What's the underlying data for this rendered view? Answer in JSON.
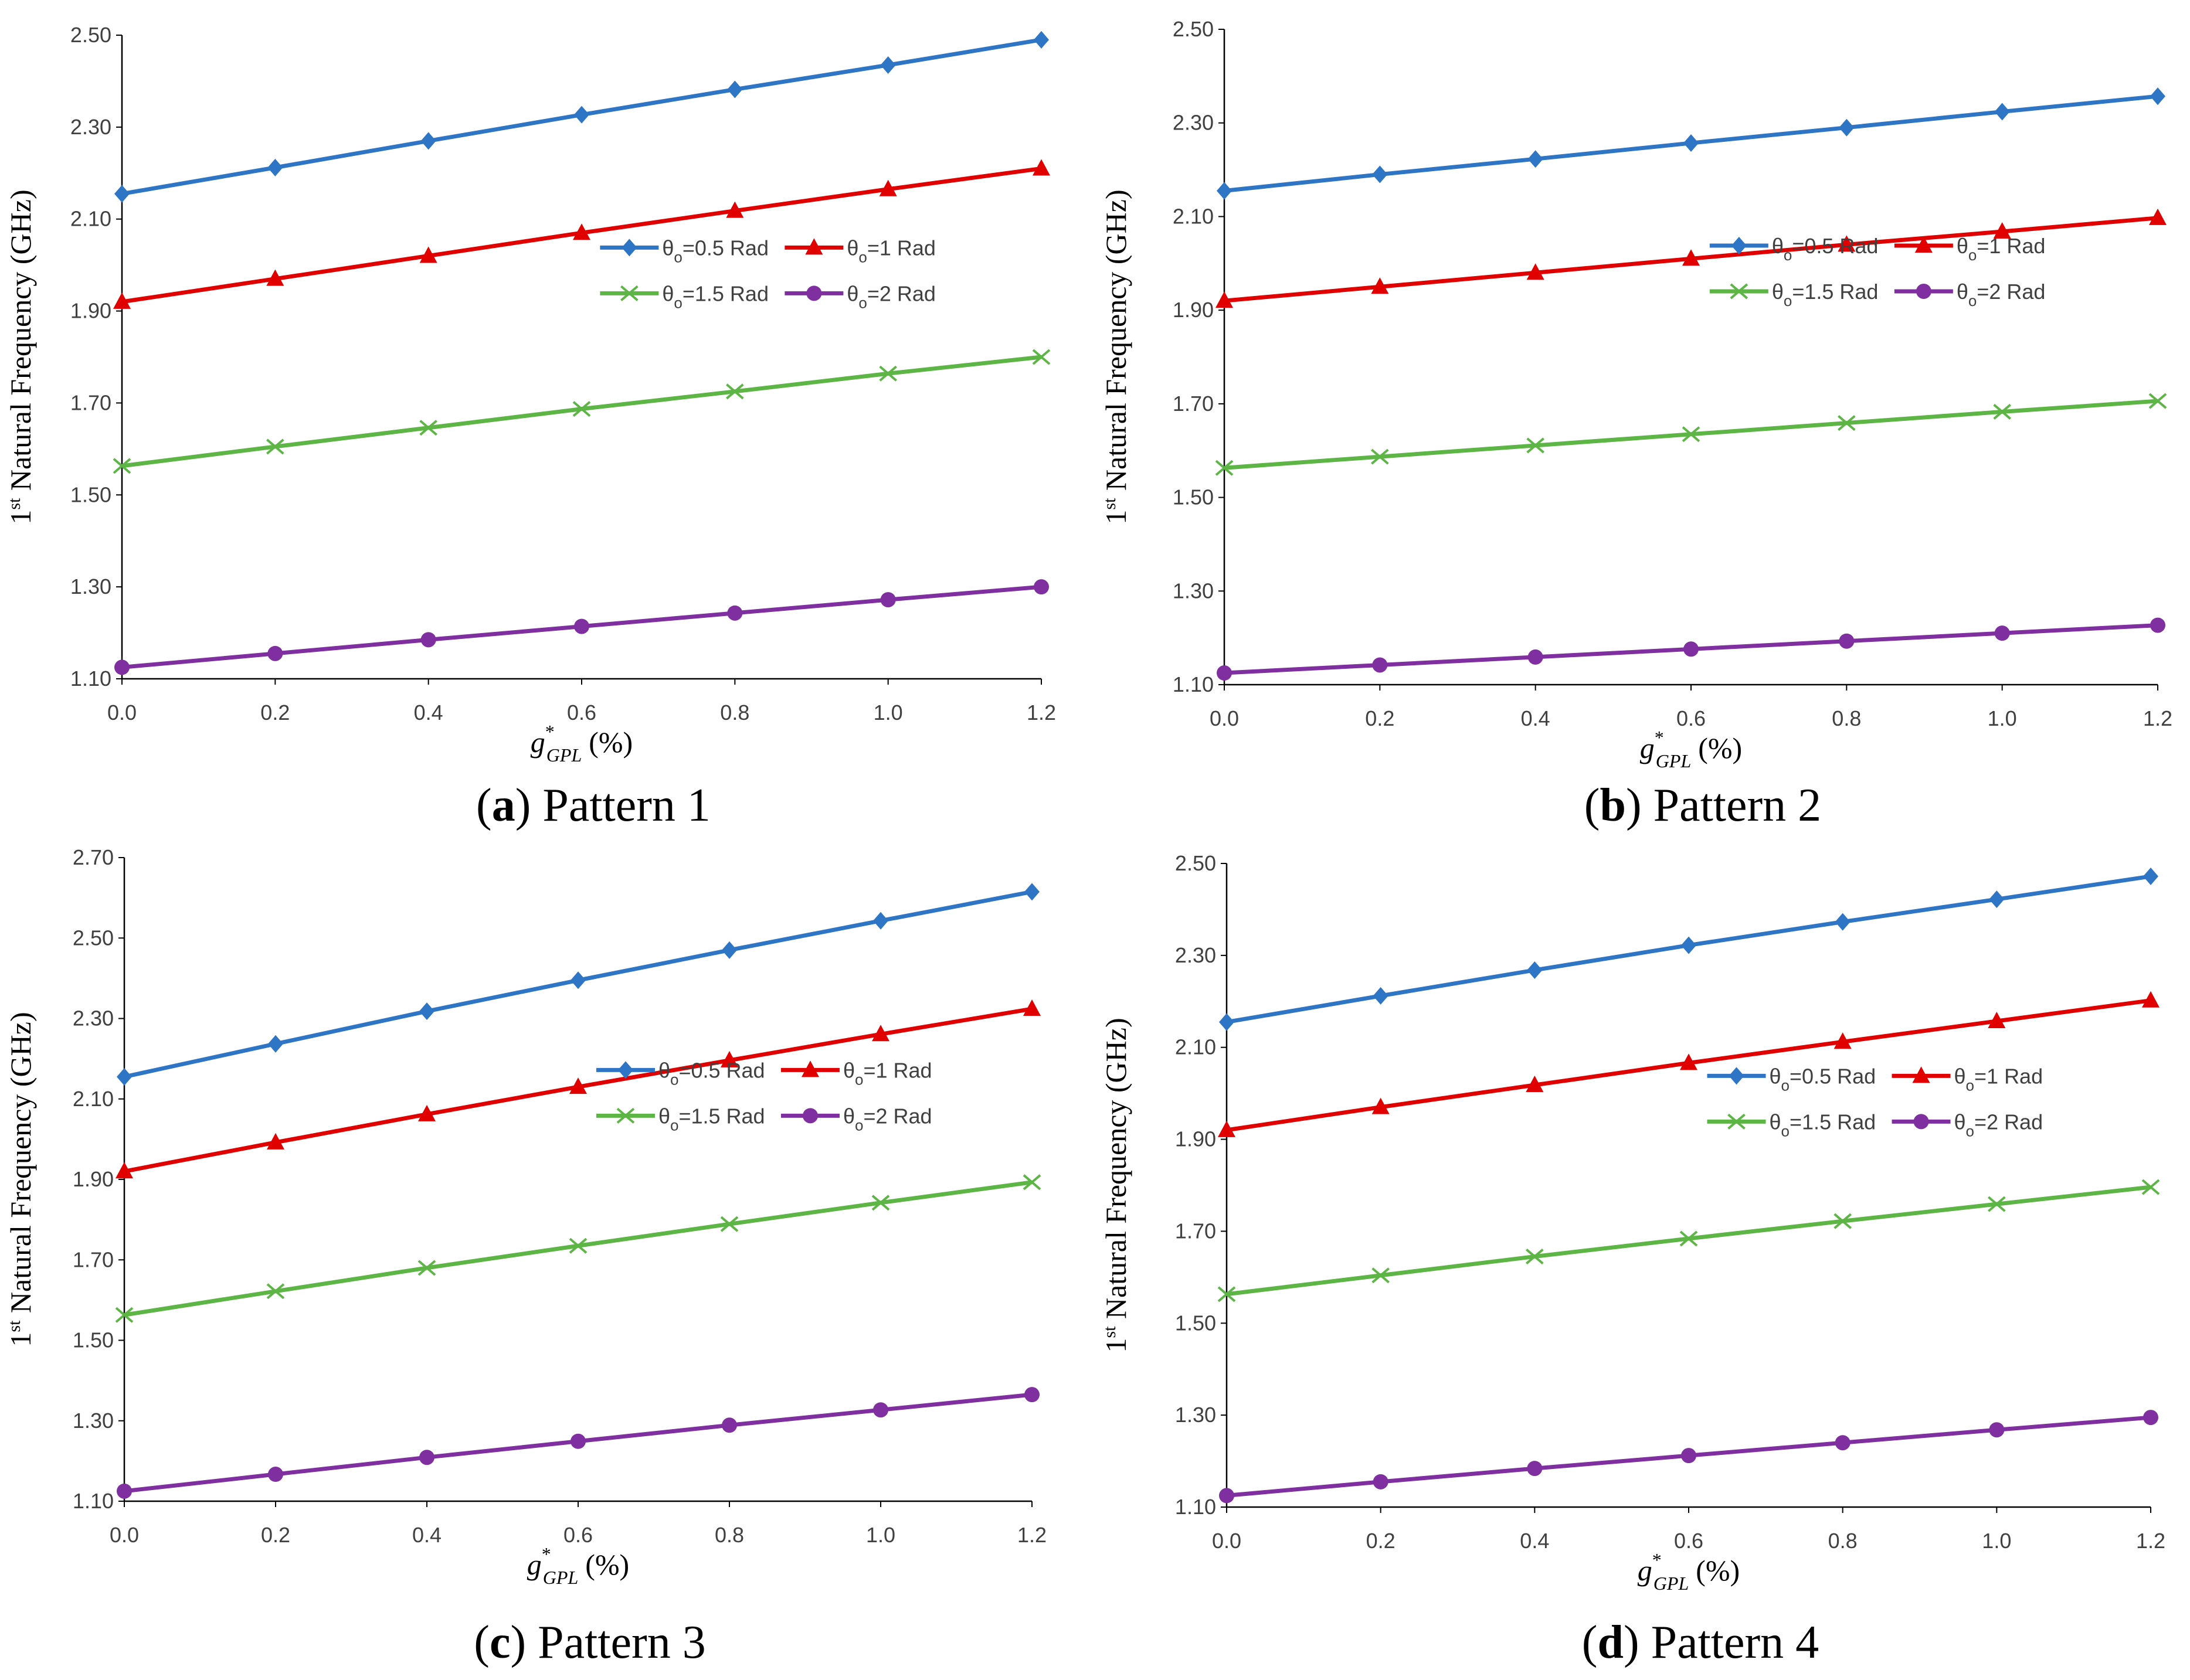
{
  "y_axis_label": "Natural Frequency (GHz)",
  "y_axis_label_prefix": "1",
  "y_axis_label_sup": "st",
  "x_axis_label_var": "g",
  "x_axis_label_sub": "GPL",
  "x_axis_label_sup": "*",
  "x_axis_label_unit": "(%)",
  "legend_theta": "θ",
  "legend_sub": "o",
  "colors": {
    "s1": "#2E75C6",
    "s2": "#E00000",
    "s3": "#5DB546",
    "s4": "#7F2FA0"
  },
  "chart_data": [
    {
      "type": "line",
      "caption_letter": "a",
      "caption_text": "Pattern 1",
      "x": [
        0.0,
        0.2,
        0.4,
        0.6,
        0.8,
        1.0,
        1.2
      ],
      "x_ticks": [
        "0.0",
        "0.2",
        "0.4",
        "0.6",
        "0.8",
        "1.0",
        "1.2"
      ],
      "ylim": [
        1.1,
        2.5
      ],
      "y_ticks": [
        "1.10",
        "1.30",
        "1.50",
        "1.70",
        "1.90",
        "2.10",
        "2.30",
        "2.50"
      ],
      "series": [
        {
          "name": "=0.5 Rad",
          "marker": "diamond",
          "values": [
            2.155,
            2.212,
            2.27,
            2.327,
            2.382,
            2.435,
            2.49
          ]
        },
        {
          "name": "=1 Rad",
          "marker": "triangle",
          "values": [
            1.92,
            1.97,
            2.02,
            2.07,
            2.118,
            2.165,
            2.21
          ]
        },
        {
          "name": "=1.5 Rad",
          "marker": "x",
          "values": [
            1.563,
            1.605,
            1.646,
            1.687,
            1.725,
            1.764,
            1.8
          ]
        },
        {
          "name": "=2 Rad",
          "marker": "circle",
          "values": [
            1.125,
            1.155,
            1.185,
            1.214,
            1.243,
            1.272,
            1.3
          ]
        }
      ]
    },
    {
      "type": "line",
      "caption_letter": "b",
      "caption_text": "Pattern 2",
      "x": [
        0.0,
        0.2,
        0.4,
        0.6,
        0.8,
        1.0,
        1.2
      ],
      "x_ticks": [
        "0.0",
        "0.2",
        "0.4",
        "0.6",
        "0.8",
        "1.0",
        "1.2"
      ],
      "ylim": [
        1.1,
        2.5
      ],
      "y_ticks": [
        "1.10",
        "1.30",
        "1.50",
        "1.70",
        "1.90",
        "2.10",
        "2.30",
        "2.50"
      ],
      "series": [
        {
          "name": "=0.5 Rad",
          "marker": "diamond",
          "values": [
            2.155,
            2.19,
            2.223,
            2.257,
            2.29,
            2.324,
            2.357
          ]
        },
        {
          "name": "=1 Rad",
          "marker": "triangle",
          "values": [
            1.92,
            1.95,
            1.98,
            2.01,
            2.04,
            2.068,
            2.097
          ]
        },
        {
          "name": "=1.5 Rad",
          "marker": "x",
          "values": [
            1.563,
            1.587,
            1.611,
            1.635,
            1.659,
            1.683,
            1.706
          ]
        },
        {
          "name": "=2 Rad",
          "marker": "circle",
          "values": [
            1.125,
            1.142,
            1.159,
            1.176,
            1.193,
            1.21,
            1.227
          ]
        }
      ]
    },
    {
      "type": "line",
      "caption_letter": "c",
      "caption_text": "Pattern 3",
      "x": [
        0.0,
        0.2,
        0.4,
        0.6,
        0.8,
        1.0,
        1.2
      ],
      "x_ticks": [
        "0.0",
        "0.2",
        "0.4",
        "0.6",
        "0.8",
        "1.0",
        "1.2"
      ],
      "ylim": [
        1.1,
        2.7
      ],
      "y_ticks": [
        "1.10",
        "1.30",
        "1.50",
        "1.70",
        "1.90",
        "2.10",
        "2.30",
        "2.50",
        "2.70"
      ],
      "series": [
        {
          "name": "=0.5 Rad",
          "marker": "diamond",
          "values": [
            2.155,
            2.237,
            2.318,
            2.395,
            2.47,
            2.543,
            2.615
          ]
        },
        {
          "name": "=1 Rad",
          "marker": "triangle",
          "values": [
            1.92,
            1.992,
            2.062,
            2.13,
            2.196,
            2.261,
            2.324
          ]
        },
        {
          "name": "=1.5 Rad",
          "marker": "x",
          "values": [
            1.563,
            1.622,
            1.68,
            1.735,
            1.789,
            1.842,
            1.893
          ]
        },
        {
          "name": "=2 Rad",
          "marker": "circle",
          "values": [
            1.125,
            1.167,
            1.209,
            1.249,
            1.289,
            1.327,
            1.365
          ]
        }
      ]
    },
    {
      "type": "line",
      "caption_letter": "d",
      "caption_text": "Pattern 4",
      "x": [
        0.0,
        0.2,
        0.4,
        0.6,
        0.8,
        1.0,
        1.2
      ],
      "x_ticks": [
        "0.0",
        "0.2",
        "0.4",
        "0.6",
        "0.8",
        "1.0",
        "1.2"
      ],
      "ylim": [
        1.1,
        2.5
      ],
      "y_ticks": [
        "1.10",
        "1.30",
        "1.50",
        "1.70",
        "1.90",
        "2.10",
        "2.30",
        "2.50"
      ],
      "series": [
        {
          "name": "=0.5 Rad",
          "marker": "diamond",
          "values": [
            2.155,
            2.212,
            2.268,
            2.322,
            2.373,
            2.422,
            2.472
          ]
        },
        {
          "name": "=1 Rad",
          "marker": "triangle",
          "values": [
            1.92,
            1.97,
            2.018,
            2.066,
            2.112,
            2.157,
            2.202
          ]
        },
        {
          "name": "=1.5 Rad",
          "marker": "x",
          "values": [
            1.563,
            1.604,
            1.645,
            1.684,
            1.722,
            1.759,
            1.796
          ]
        },
        {
          "name": "=2 Rad",
          "marker": "circle",
          "values": [
            1.125,
            1.155,
            1.184,
            1.212,
            1.24,
            1.268,
            1.295
          ]
        }
      ]
    }
  ]
}
